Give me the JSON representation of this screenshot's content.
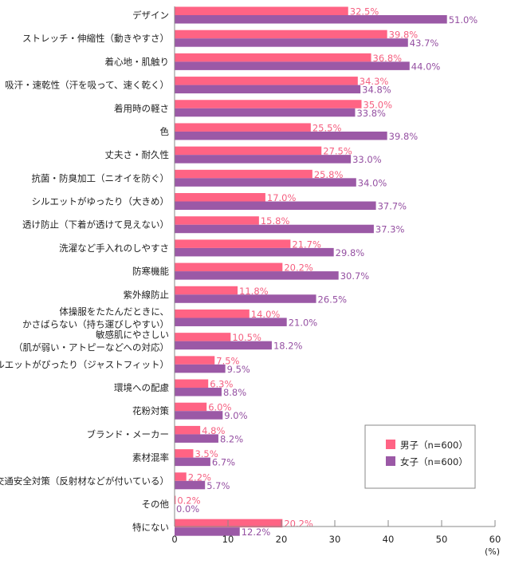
{
  "chart_data": {
    "type": "bar",
    "orientation": "horizontal",
    "categories": [
      "デザイン",
      "ストレッチ・伸縮性（動きやすさ）",
      "着心地・肌触り",
      "吸汗・速乾性（汗を吸って、速く乾く）",
      "着用時の軽さ",
      "色",
      "丈夫さ・耐久性",
      "抗菌・防臭加工（ニオイを防ぐ）",
      "シルエットがゆったり（大きめ）",
      "透け防止（下着が透けて見えない）",
      "洗濯など手入れのしやすさ",
      "防寒機能",
      "紫外線防止",
      "体操服をたたんだときに、|かさばらない（持ち運びしやすい）",
      "敏感肌にやさしい|（肌が弱い・アトピーなどへの対応）",
      "シルエットがぴったり（ジャストフィット）",
      "環境への配慮",
      "花粉対策",
      "ブランド・メーカー",
      "素材混率",
      "交通安全対策（反射材などが付いている）",
      "その他",
      "特にない"
    ],
    "series": [
      {
        "name": "男子（n=600）",
        "color": "#ff6384",
        "label_color": "#f55f80",
        "values": [
          32.5,
          39.8,
          36.8,
          34.3,
          35.0,
          25.5,
          27.5,
          25.8,
          17.0,
          15.8,
          21.7,
          20.2,
          11.8,
          14.0,
          10.5,
          7.5,
          6.3,
          6.0,
          4.8,
          3.5,
          2.2,
          0.2,
          20.2
        ]
      },
      {
        "name": "女子（n=600）",
        "color": "#9b59a6",
        "label_color": "#9550a2",
        "values": [
          51.0,
          43.7,
          44.0,
          34.8,
          33.8,
          39.8,
          33.0,
          34.0,
          37.7,
          37.3,
          29.8,
          30.7,
          26.5,
          21.0,
          18.2,
          9.5,
          8.8,
          9.0,
          8.2,
          6.7,
          5.7,
          0.0,
          12.2
        ]
      }
    ],
    "xlim": [
      0,
      60
    ],
    "xticks": [
      0,
      10,
      20,
      30,
      40,
      50,
      60
    ],
    "xunit": "(%)",
    "grid": false,
    "legend_position": "bottom-right",
    "data_label_suffix": "%"
  }
}
